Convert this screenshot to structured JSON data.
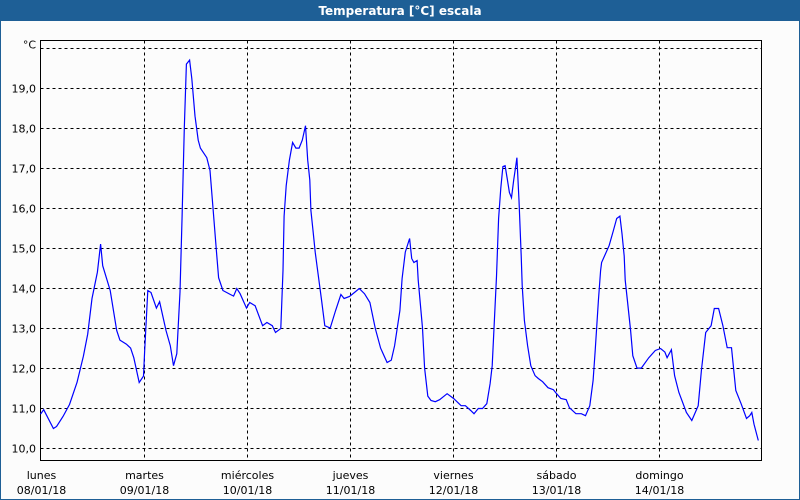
{
  "window": {
    "title": "Temperatura [°C] escala",
    "accent": "#1e5f96"
  },
  "chart_data": {
    "type": "line",
    "title": "Temperatura [°C] escala",
    "ylabel": "°C",
    "xlabel": "",
    "ylim": [
      9.69,
      20.19
    ],
    "yticks": [
      10,
      11,
      12,
      13,
      14,
      15,
      16,
      17,
      18,
      19
    ],
    "ytick_labels": [
      "10,0",
      "11,0",
      "12,0",
      "13,0",
      "14,0",
      "15,0",
      "16,0",
      "17,0",
      "18,0",
      "19,0"
    ],
    "grid": true,
    "line_color": "#0000ff",
    "xticks": [
      {
        "day": "lunes",
        "date": "08/01/18"
      },
      {
        "day": "martes",
        "date": "09/01/18"
      },
      {
        "day": "miércoles",
        "date": "10/01/18"
      },
      {
        "day": "jueves",
        "date": "11/01/18"
      },
      {
        "day": "viernes",
        "date": "12/01/18"
      },
      {
        "day": "sábado",
        "date": "13/01/18"
      },
      {
        "day": "domingo",
        "date": "14/01/18"
      }
    ],
    "series": [
      {
        "values": [
          {
            "date": "08/01/18",
            "points": [
              [
                "00:00",
                10.85
              ],
              [
                "00:45",
                10.96
              ],
              [
                "03:00",
                10.49
              ],
              [
                "03:45",
                10.54
              ],
              [
                "05:15",
                10.79
              ],
              [
                "06:45",
                11.09
              ],
              [
                "08:30",
                11.64
              ],
              [
                "10:00",
                12.3
              ],
              [
                "11:00",
                12.85
              ],
              [
                "12:00",
                13.74
              ],
              [
                "13:15",
                14.4
              ],
              [
                "14:00",
                15.1
              ],
              [
                "14:30",
                14.56
              ],
              [
                "16:15",
                13.94
              ],
              [
                "17:45",
                12.94
              ],
              [
                "18:30",
                12.7
              ],
              [
                "20:00",
                12.6
              ],
              [
                "21:00",
                12.5
              ],
              [
                "21:45",
                12.26
              ],
              [
                "23:00",
                11.64
              ]
            ]
          },
          {
            "date": "09/01/18",
            "points": [
              [
                "00:00",
                11.8
              ],
              [
                "00:15",
                12.4
              ],
              [
                "01:00",
                13.94
              ],
              [
                "01:45",
                13.89
              ],
              [
                "03:00",
                13.5
              ],
              [
                "03:45",
                13.66
              ],
              [
                "05:15",
                12.94
              ],
              [
                "06:15",
                12.56
              ],
              [
                "07:00",
                12.06
              ],
              [
                "07:45",
                12.36
              ],
              [
                "08:30",
                13.9
              ],
              [
                "09:00",
                15.8
              ],
              [
                "09:30",
                18.0
              ],
              [
                "10:00",
                19.6
              ],
              [
                "10:45",
                19.7
              ],
              [
                "11:15",
                19.24
              ],
              [
                "12:00",
                18.3
              ],
              [
                "12:45",
                17.7
              ],
              [
                "13:15",
                17.5
              ],
              [
                "14:45",
                17.26
              ],
              [
                "15:30",
                16.94
              ],
              [
                "16:15",
                15.94
              ],
              [
                "17:00",
                14.9
              ],
              [
                "17:30",
                14.26
              ],
              [
                "18:30",
                13.94
              ],
              [
                "20:15",
                13.84
              ],
              [
                "21:00",
                13.8
              ],
              [
                "21:45",
                13.99
              ],
              [
                "22:30",
                13.86
              ]
            ]
          },
          {
            "date": "10/01/18",
            "points": [
              [
                "00:00",
                13.5
              ],
              [
                "00:45",
                13.64
              ],
              [
                "02:00",
                13.56
              ],
              [
                "03:45",
                13.06
              ],
              [
                "04:45",
                13.14
              ],
              [
                "06:00",
                13.06
              ],
              [
                "06:45",
                12.89
              ],
              [
                "08:00",
                12.99
              ],
              [
                "08:30",
                14.44
              ],
              [
                "08:45",
                15.8
              ],
              [
                "09:15",
                16.56
              ],
              [
                "10:00",
                17.2
              ],
              [
                "10:45",
                17.64
              ],
              [
                "11:30",
                17.5
              ],
              [
                "12:15",
                17.5
              ],
              [
                "13:00",
                17.7
              ],
              [
                "13:45",
                18.06
              ],
              [
                "14:15",
                17.2
              ],
              [
                "14:45",
                16.7
              ],
              [
                "15:00",
                15.94
              ],
              [
                "15:30",
                15.44
              ],
              [
                "16:00",
                14.9
              ],
              [
                "16:30",
                14.5
              ],
              [
                "17:30",
                13.69
              ],
              [
                "18:15",
                13.06
              ],
              [
                "19:30",
                13.0
              ],
              [
                "20:45",
                13.44
              ],
              [
                "22:00",
                13.84
              ],
              [
                "22:45",
                13.74
              ]
            ]
          },
          {
            "date": "11/01/18",
            "points": [
              [
                "00:00",
                13.79
              ],
              [
                "01:15",
                13.9
              ],
              [
                "02:15",
                13.99
              ],
              [
                "03:30",
                13.86
              ],
              [
                "04:45",
                13.64
              ],
              [
                "06:00",
                12.99
              ],
              [
                "07:15",
                12.5
              ],
              [
                "08:45",
                12.14
              ],
              [
                "09:45",
                12.2
              ],
              [
                "10:30",
                12.56
              ],
              [
                "11:45",
                13.44
              ],
              [
                "12:15",
                14.24
              ],
              [
                "13:00",
                14.9
              ],
              [
                "14:00",
                15.24
              ],
              [
                "14:30",
                14.74
              ],
              [
                "15:00",
                14.64
              ],
              [
                "15:45",
                14.69
              ],
              [
                "16:00",
                14.2
              ],
              [
                "17:00",
                13.0
              ],
              [
                "17:30",
                12.0
              ],
              [
                "18:15",
                11.3
              ],
              [
                "19:00",
                11.19
              ],
              [
                "20:00",
                11.16
              ],
              [
                "21:00",
                11.21
              ],
              [
                "22:45",
                11.36
              ]
            ]
          },
          {
            "date": "12/01/18",
            "points": [
              [
                "00:15",
                11.24
              ],
              [
                "02:00",
                11.06
              ],
              [
                "03:00",
                11.06
              ],
              [
                "04:15",
                10.94
              ],
              [
                "05:00",
                10.86
              ],
              [
                "06:00",
                10.99
              ],
              [
                "07:00",
                10.99
              ],
              [
                "08:00",
                11.11
              ],
              [
                "08:45",
                11.61
              ],
              [
                "09:15",
                12.06
              ],
              [
                "10:15",
                14.29
              ],
              [
                "10:45",
                15.74
              ],
              [
                "11:15",
                16.5
              ],
              [
                "11:45",
                17.04
              ],
              [
                "12:15",
                17.06
              ],
              [
                "12:45",
                16.74
              ],
              [
                "13:15",
                16.39
              ],
              [
                "13:45",
                16.26
              ],
              [
                "14:15",
                16.7
              ],
              [
                "14:45",
                17.06
              ],
              [
                "15:00",
                17.26
              ],
              [
                "15:30",
                16.19
              ],
              [
                "16:00",
                14.81
              ],
              [
                "16:15",
                14.06
              ],
              [
                "16:45",
                13.19
              ],
              [
                "17:30",
                12.56
              ],
              [
                "18:15",
                12.06
              ],
              [
                "19:15",
                11.81
              ],
              [
                "20:00",
                11.74
              ],
              [
                "21:00",
                11.66
              ],
              [
                "22:15",
                11.51
              ],
              [
                "23:30",
                11.46
              ]
            ]
          },
          {
            "date": "13/01/18",
            "points": [
              [
                "00:15",
                11.36
              ],
              [
                "01:15",
                11.24
              ],
              [
                "02:30",
                11.21
              ],
              [
                "03:15",
                11.01
              ],
              [
                "04:45",
                10.86
              ],
              [
                "06:00",
                10.86
              ],
              [
                "07:00",
                10.81
              ],
              [
                "08:00",
                11.06
              ],
              [
                "08:45",
                11.69
              ],
              [
                "09:15",
                12.44
              ],
              [
                "10:00",
                13.69
              ],
              [
                "10:30",
                14.44
              ],
              [
                "10:45",
                14.64
              ],
              [
                "12:30",
                15.06
              ],
              [
                "13:30",
                15.44
              ],
              [
                "14:15",
                15.74
              ],
              [
                "15:00",
                15.8
              ],
              [
                "15:30",
                15.36
              ],
              [
                "16:00",
                14.8
              ],
              [
                "16:15",
                14.2
              ],
              [
                "16:45",
                13.69
              ],
              [
                "17:30",
                12.94
              ],
              [
                "18:00",
                12.31
              ],
              [
                "19:00",
                12.0
              ],
              [
                "20:00",
                12.0
              ],
              [
                "21:45",
                12.26
              ],
              [
                "23:15",
                12.44
              ]
            ]
          },
          {
            "date": "14/01/18",
            "points": [
              [
                "00:30",
                12.49
              ],
              [
                "01:30",
                12.4
              ],
              [
                "02:00",
                12.26
              ],
              [
                "03:00",
                12.46
              ],
              [
                "03:45",
                11.81
              ],
              [
                "04:45",
                11.39
              ],
              [
                "06:30",
                10.89
              ],
              [
                "07:45",
                10.69
              ],
              [
                "09:15",
                11.06
              ],
              [
                "10:00",
                11.94
              ],
              [
                "11:00",
                12.89
              ],
              [
                "12:15",
                13.06
              ],
              [
                "13:00",
                13.49
              ],
              [
                "14:00",
                13.49
              ],
              [
                "15:00",
                13.06
              ],
              [
                "16:00",
                12.51
              ],
              [
                "17:00",
                12.51
              ],
              [
                "18:00",
                11.44
              ],
              [
                "19:15",
                11.11
              ],
              [
                "20:30",
                10.74
              ],
              [
                "21:15",
                10.81
              ],
              [
                "21:45",
                10.89
              ],
              [
                "22:15",
                10.6
              ],
              [
                "23:15",
                10.19
              ]
            ]
          }
        ]
      }
    ]
  }
}
